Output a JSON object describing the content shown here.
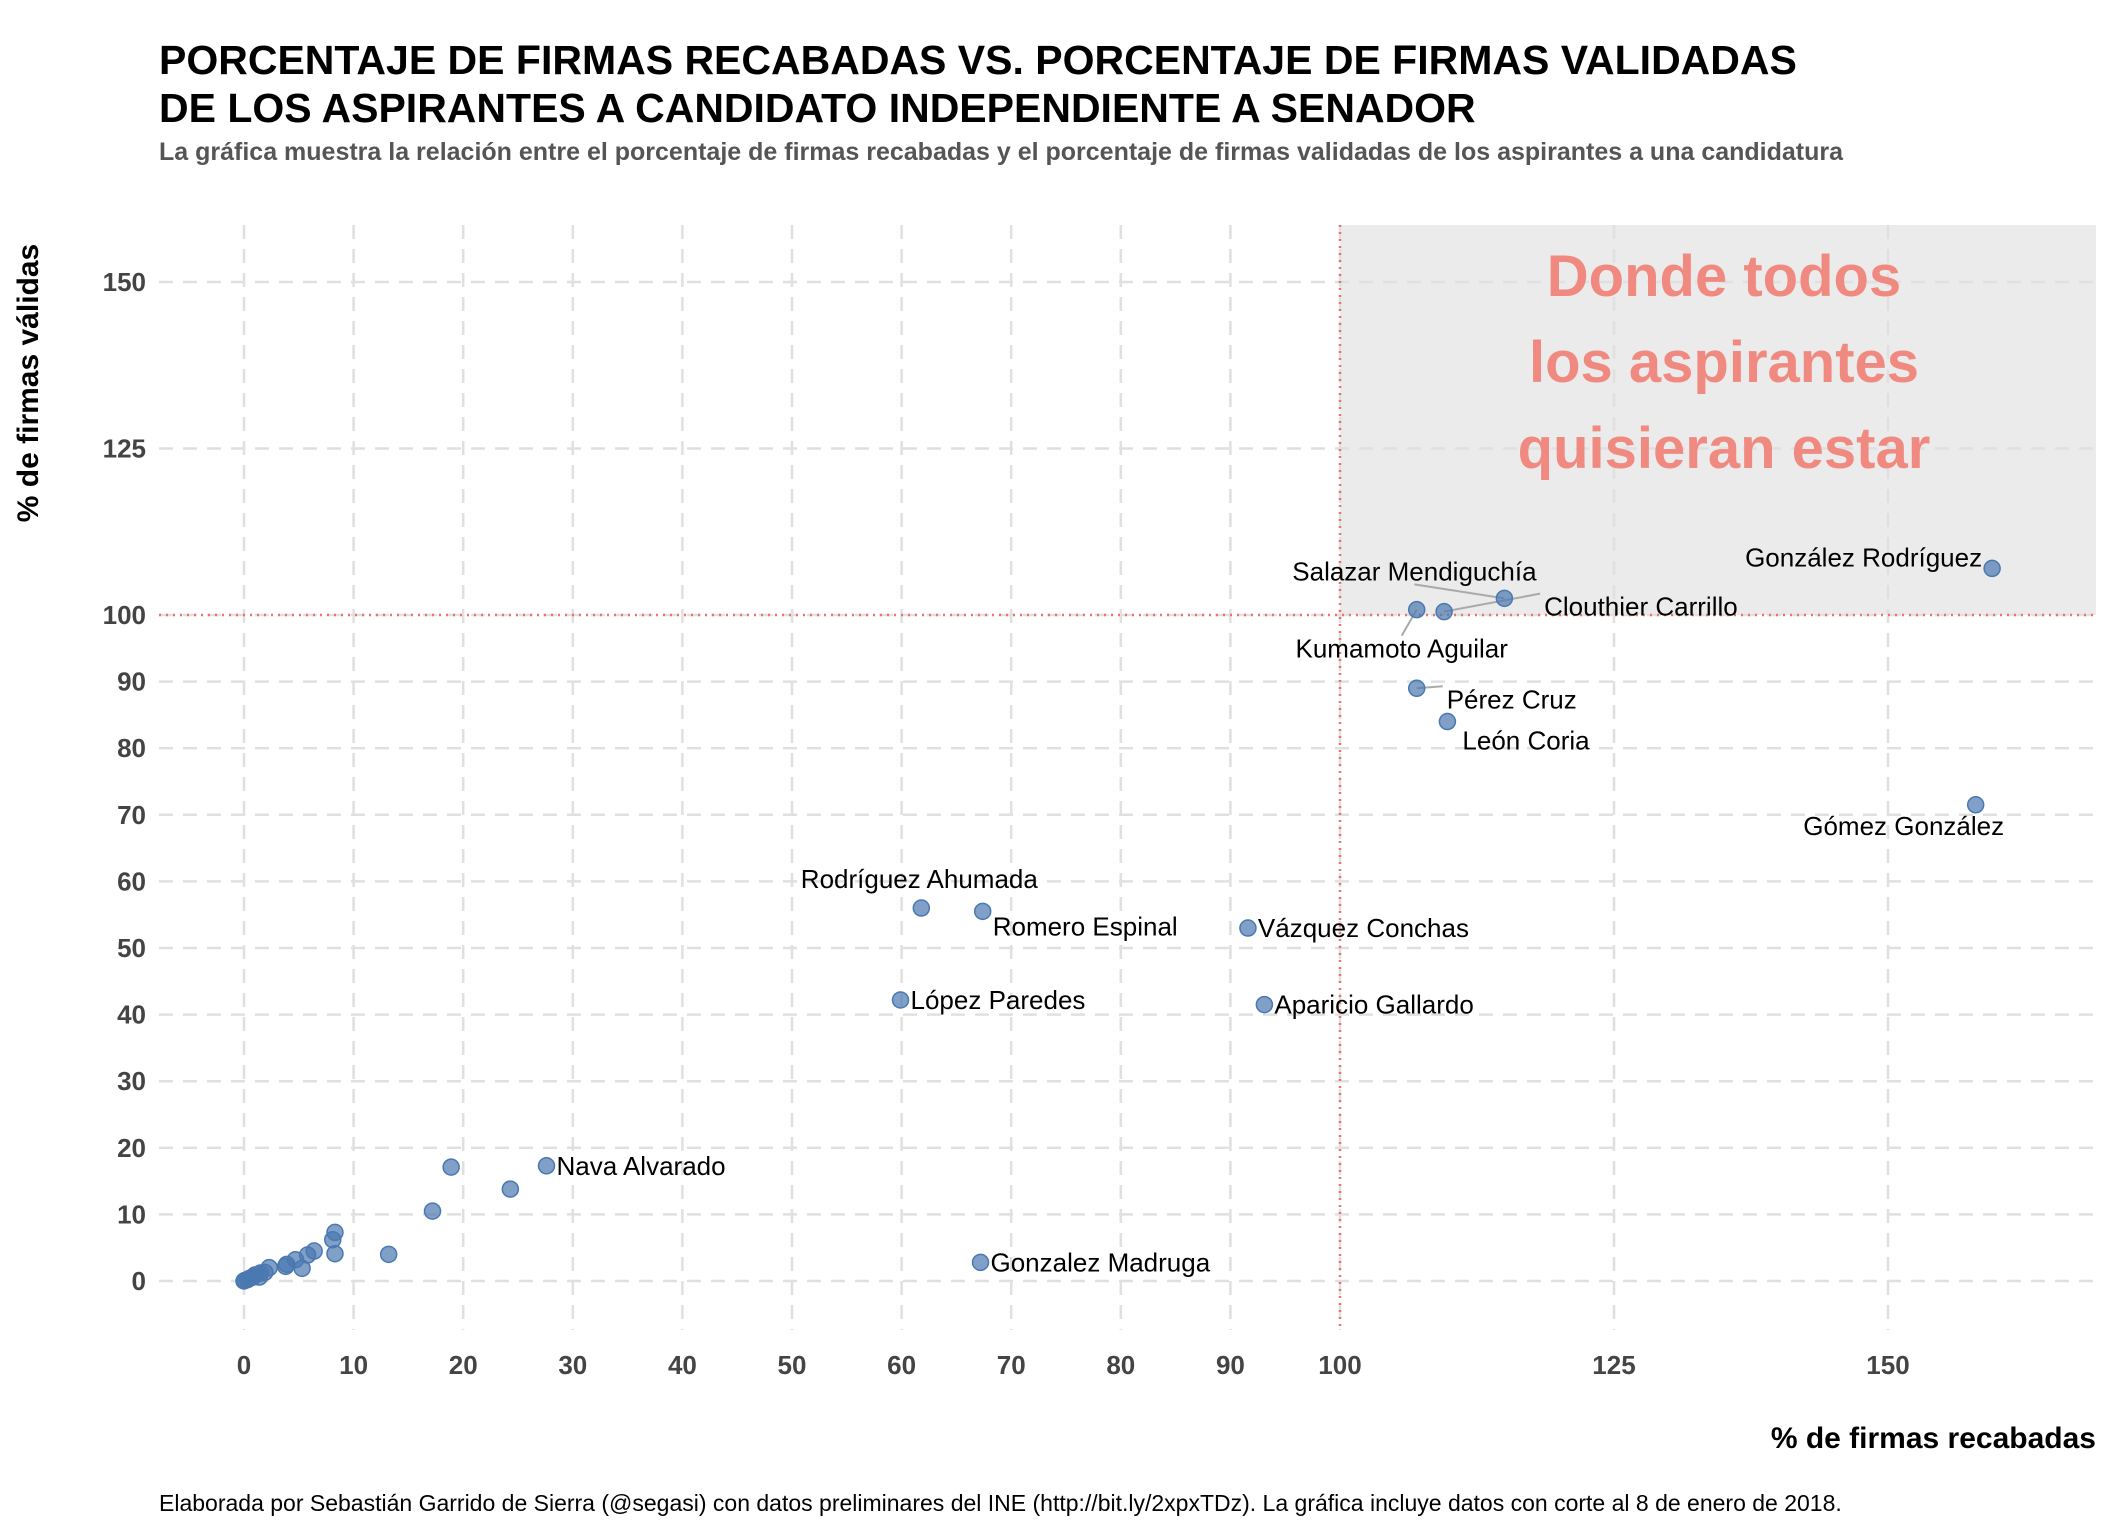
{
  "title_lines": [
    "PORCENTAJE DE FIRMAS RECABADAS VS. PORCENTAJE DE FIRMAS VALIDADAS",
    "DE LOS ASPIRANTES A CANDIDATO INDEPENDIENTE A SENADOR"
  ],
  "subtitle": "La gráfica muestra la relación entre el porcentaje de firmas recabadas y el porcentaje de firmas validadas de los aspirantes a una candidatura",
  "caption": "Elaborada por Sebastián Garrido de Sierra (@segasi) con datos preliminares del INE (http://bit.ly/2xpxTDz). La gráfica incluye datos con corte al 8 de enero de 2018.",
  "colors": {
    "point": "#4a78b0",
    "reference_line": "#e8736f",
    "region": "#ebebeb",
    "annotation": "#f08a80",
    "grid": "#e0e0e0"
  },
  "chart_data": {
    "type": "scatter",
    "xlabel": "% de firmas recabadas",
    "ylabel": "% de firmas válidas",
    "xlim": [
      -8,
      170
    ],
    "ylim": [
      -8,
      160
    ],
    "x_ticks": [
      0,
      10,
      20,
      30,
      40,
      50,
      60,
      70,
      80,
      90,
      100,
      125,
      150
    ],
    "y_ticks": [
      0,
      10,
      20,
      30,
      40,
      50,
      60,
      70,
      80,
      90,
      100,
      125,
      150
    ],
    "x_scale": "piecewise-linear, compressed above 100",
    "y_scale": "piecewise-linear, compressed above 100",
    "grid": true,
    "reference_lines": {
      "x": 100,
      "y": 100,
      "style": "dotted"
    },
    "highlight_region": {
      "x_min": 100,
      "y_min": 100
    },
    "annotation": {
      "lines": [
        "Donde todos",
        "los aspirantes",
        "quisieran estar"
      ]
    },
    "points": [
      {
        "label": "González Rodríguez",
        "x": 159.5,
        "y": 107
      },
      {
        "label": "Salazar Mendiguchía",
        "x": 115,
        "y": 102.5
      },
      {
        "label": "Clouthier Carrillo",
        "x": 109.5,
        "y": 100.5
      },
      {
        "label": "Kumamoto Aguilar",
        "x": 107,
        "y": 100.8
      },
      {
        "label": "Pérez Cruz",
        "x": 107,
        "y": 89
      },
      {
        "label": "León Coria",
        "x": 109.8,
        "y": 84
      },
      {
        "label": "Gómez González",
        "x": 158,
        "y": 71.5
      },
      {
        "label": "Rodríguez Ahumada",
        "x": 61.8,
        "y": 56
      },
      {
        "label": "Romero Espinal",
        "x": 67.4,
        "y": 55.5
      },
      {
        "label": "Vázquez Conchas",
        "x": 91.6,
        "y": 53
      },
      {
        "label": "López Paredes",
        "x": 59.9,
        "y": 42.2
      },
      {
        "label": "Aparicio Gallardo",
        "x": 93.1,
        "y": 41.5
      },
      {
        "label": "Nava Alvarado",
        "x": 27.6,
        "y": 17.3
      },
      {
        "label": "Gonzalez Madruga",
        "x": 67.2,
        "y": 2.8
      },
      {
        "label": "",
        "x": 18.9,
        "y": 17.1
      },
      {
        "label": "",
        "x": 24.3,
        "y": 13.8
      },
      {
        "label": "",
        "x": 17.2,
        "y": 10.5
      },
      {
        "label": "",
        "x": 13.2,
        "y": 4.0
      },
      {
        "label": "",
        "x": 8.3,
        "y": 7.3
      },
      {
        "label": "",
        "x": 8.1,
        "y": 6.2
      },
      {
        "label": "",
        "x": 8.3,
        "y": 4.1
      },
      {
        "label": "",
        "x": 6.4,
        "y": 4.5
      },
      {
        "label": "",
        "x": 5.8,
        "y": 3.9
      },
      {
        "label": "",
        "x": 4.7,
        "y": 3.2
      },
      {
        "label": "",
        "x": 5.3,
        "y": 1.9
      },
      {
        "label": "",
        "x": 3.9,
        "y": 2.5
      },
      {
        "label": "",
        "x": 3.8,
        "y": 2.2
      },
      {
        "label": "",
        "x": 2.3,
        "y": 2.0
      },
      {
        "label": "",
        "x": 1.9,
        "y": 1.3
      },
      {
        "label": "",
        "x": 1.5,
        "y": 1.2
      },
      {
        "label": "",
        "x": 1.4,
        "y": 0.6
      },
      {
        "label": "",
        "x": 1.0,
        "y": 0.9
      },
      {
        "label": "",
        "x": 0.8,
        "y": 0.6
      },
      {
        "label": "",
        "x": 0.5,
        "y": 0.4
      },
      {
        "label": "",
        "x": 0.3,
        "y": 0.2
      },
      {
        "label": "",
        "x": 0.1,
        "y": 0.1
      },
      {
        "label": "",
        "x": 0.0,
        "y": 0.0
      }
    ]
  }
}
